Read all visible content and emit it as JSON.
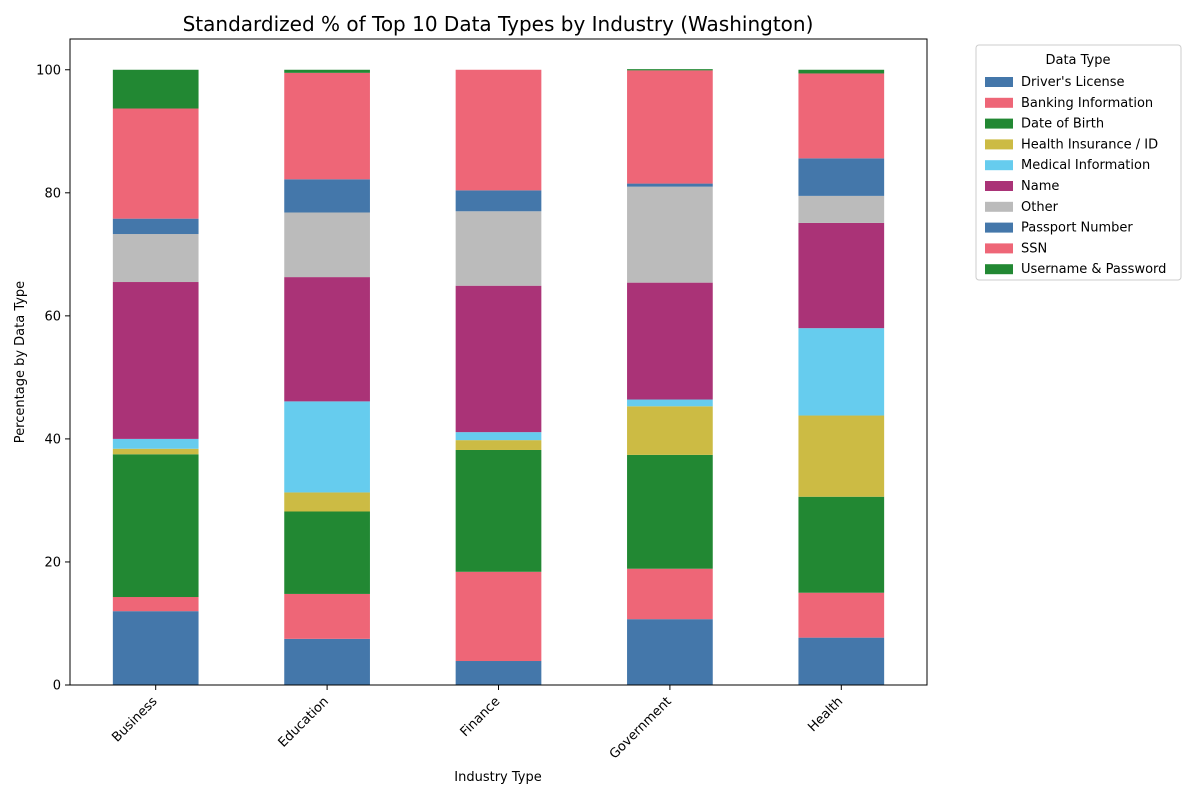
{
  "chart_data": {
    "type": "bar",
    "stacked": true,
    "title": "Standardized % of Top 10 Data Types by Industry (Washington)",
    "xlabel": "Industry Type",
    "ylabel": "Percentage by Data Type",
    "ylim": [
      0,
      105
    ],
    "yticks": [
      0,
      20,
      40,
      60,
      80,
      100
    ],
    "grid": false,
    "legend_title": "Data Type",
    "legend_placement": "outside-top-right",
    "categories": [
      "Business",
      "Education",
      "Finance",
      "Government",
      "Health"
    ],
    "series": [
      {
        "name": "Driver's License",
        "color": "#4477AA",
        "values": [
          12.0,
          7.5,
          3.9,
          10.7,
          7.7
        ]
      },
      {
        "name": "Banking Information",
        "color": "#EE6677",
        "values": [
          2.3,
          7.3,
          14.5,
          8.2,
          7.3
        ]
      },
      {
        "name": "Date of Birth",
        "color": "#228833",
        "values": [
          23.2,
          13.4,
          19.8,
          18.5,
          15.6
        ]
      },
      {
        "name": "Health Insurance / ID",
        "color": "#CCBB44",
        "values": [
          0.9,
          3.1,
          1.6,
          7.9,
          13.2
        ]
      },
      {
        "name": "Medical Information",
        "color": "#66CCEE",
        "values": [
          1.6,
          14.8,
          1.3,
          1.1,
          14.2
        ]
      },
      {
        "name": "Name",
        "color": "#AA3377",
        "values": [
          25.5,
          20.2,
          23.8,
          19.0,
          17.1
        ]
      },
      {
        "name": "Other",
        "color": "#BBBBBB",
        "values": [
          7.8,
          10.5,
          12.1,
          15.6,
          4.4
        ]
      },
      {
        "name": "Passport Number",
        "color": "#4477AA",
        "values": [
          2.5,
          5.4,
          3.4,
          0.5,
          6.1
        ]
      },
      {
        "name": "SSN",
        "color": "#EE6677",
        "values": [
          17.9,
          17.3,
          19.6,
          18.4,
          13.8
        ]
      },
      {
        "name": "Username & Password",
        "color": "#228833",
        "values": [
          6.3,
          0.5,
          0.0,
          0.2,
          0.6
        ]
      }
    ]
  }
}
